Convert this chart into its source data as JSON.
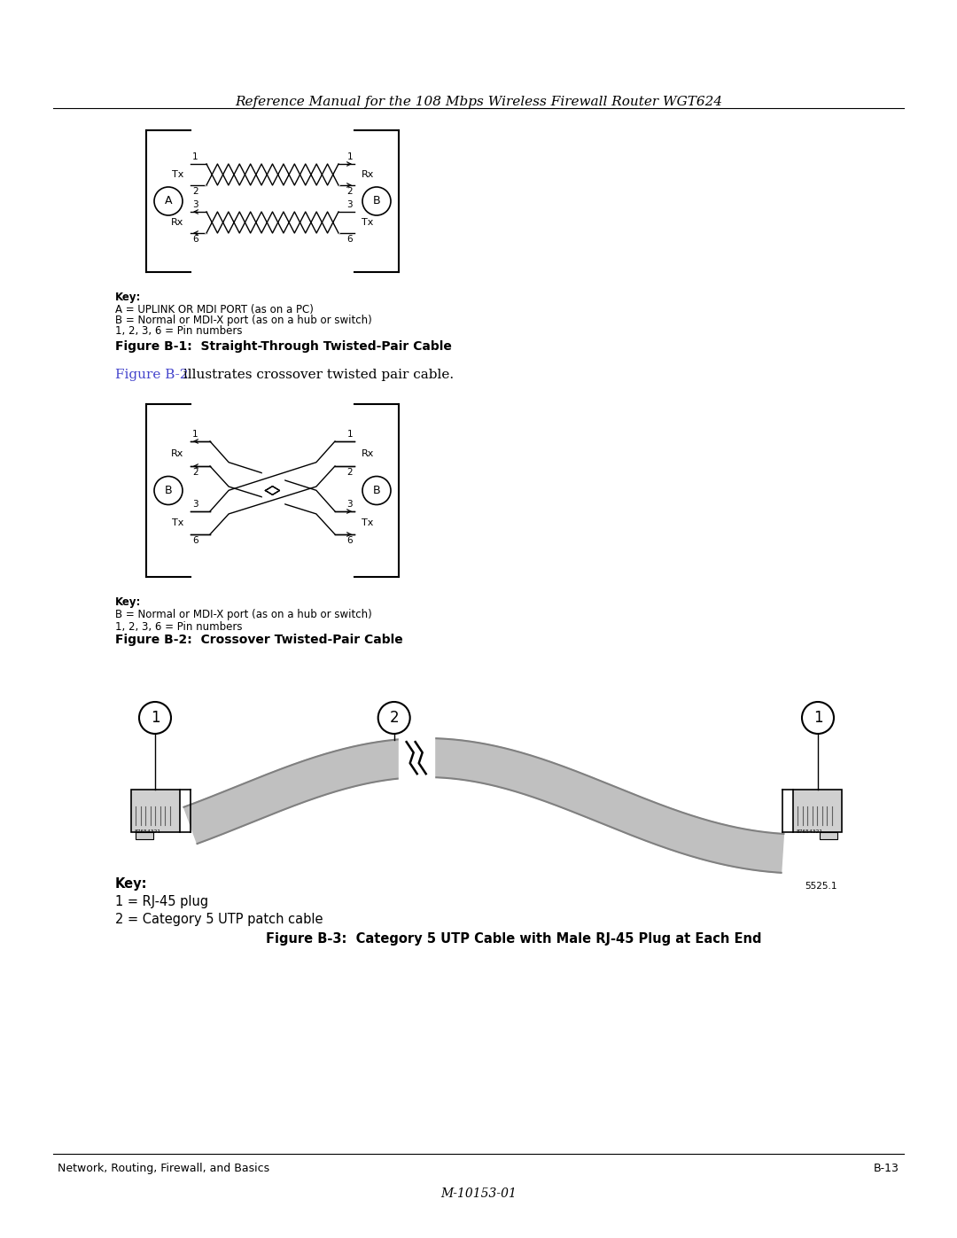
{
  "header_text": "Reference Manual for the 108 Mbps Wireless Firewall Router WGT624",
  "fig1_title": "Figure B-1:  Straight-Through Twisted-Pair Cable",
  "fig2_title": "Figure B-2:  Crossover Twisted-Pair Cable",
  "fig3_title": "Figure B-3:  Category 5 UTP Cable with Male RJ-45 Plug at Each End",
  "fig2_ref_text": "Figure B-2",
  "fig2_ref_suffix": " illustrates crossover twisted pair cable.",
  "key1_lines": [
    "Key:",
    "A = UPLINK OR MDI PORT (as on a PC)",
    "B = Normal or MDI-X port (as on a hub or switch)",
    "1, 2, 3, 6 = Pin numbers"
  ],
  "key2_lines": [
    "Key:",
    "B = Normal or MDI-X port (as on a hub or switch)",
    "1, 2, 3, 6 = Pin numbers"
  ],
  "key3_line0": "Key:",
  "key3_line1": "1 = RJ-45 plug",
  "key3_line2": "2 = Category 5 UTP patch cable",
  "footer_left": "Network, Routing, Firewall, and Basics",
  "footer_right": "B-13",
  "footer_center": "M-10153-01",
  "bg_color": "#ffffff",
  "text_color": "#000000",
  "link_color": "#4444cc",
  "diagram_lw": 1.5,
  "cable_fill": "#c0c0c0",
  "cable_edge": "#808080"
}
